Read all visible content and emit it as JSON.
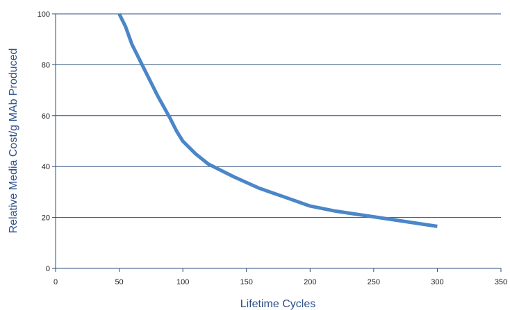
{
  "chart_data": {
    "type": "line",
    "title": "",
    "xlabel": "Lifetime Cycles",
    "ylabel": "Relative Media Cost/g MAb Produced",
    "xlim": [
      0,
      350
    ],
    "ylim": [
      0,
      100
    ],
    "x_ticks": [
      0,
      50,
      100,
      150,
      200,
      250,
      300,
      350
    ],
    "y_ticks": [
      0,
      20,
      40,
      60,
      80,
      100
    ],
    "grid": "horizontal",
    "series": [
      {
        "x": [
          50,
          55,
          60,
          70,
          80,
          90,
          95,
          100,
          110,
          120,
          140,
          160,
          180,
          200,
          220,
          240,
          260,
          280,
          300
        ],
        "y": [
          100,
          95,
          88,
          78,
          68,
          59,
          54,
          50,
          45,
          41,
          36,
          31.5,
          28,
          24.5,
          22.5,
          21,
          19.5,
          18,
          16.5
        ],
        "color": "#4a86c8"
      }
    ]
  }
}
